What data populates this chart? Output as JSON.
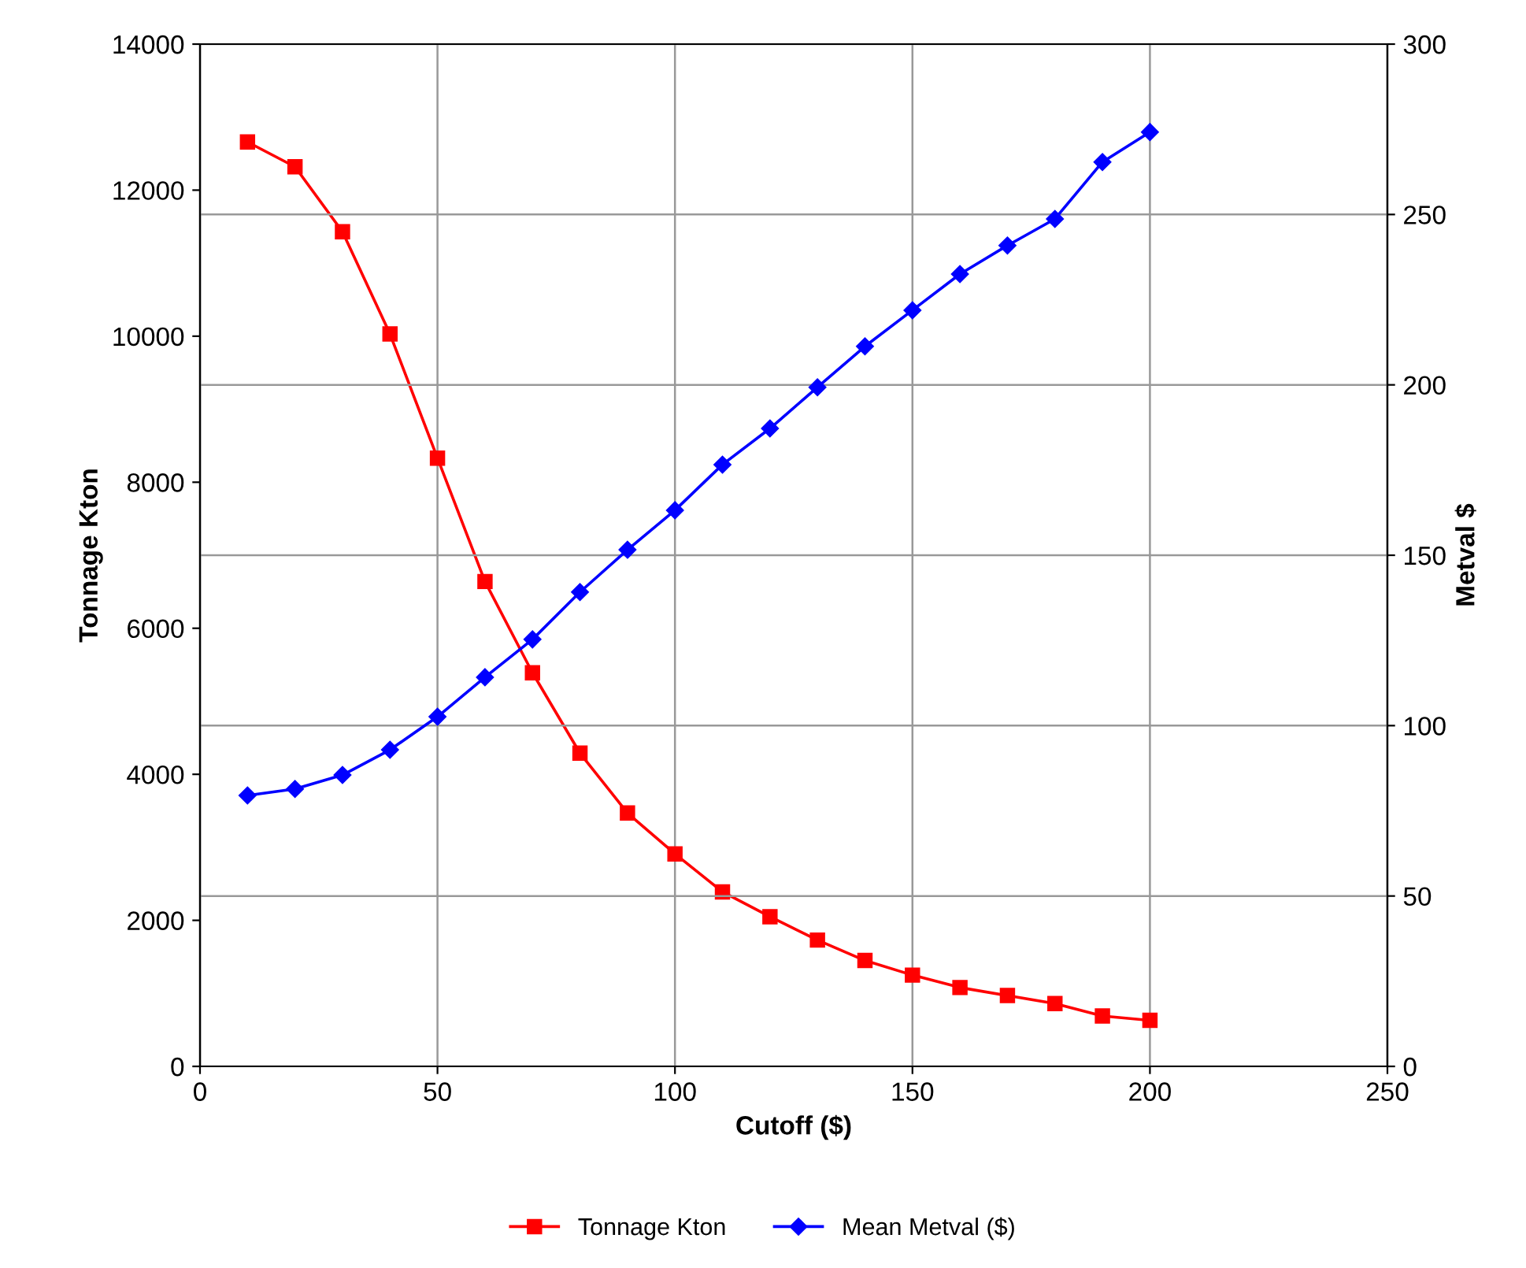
{
  "chart_data": {
    "type": "line",
    "xlabel": "Cutoff ($)",
    "ylabel": "Tonnage Kton",
    "y2label": "Metval $",
    "x": [
      10,
      20,
      30,
      40,
      50,
      60,
      70,
      80,
      90,
      100,
      110,
      120,
      130,
      140,
      150,
      160,
      170,
      180,
      190,
      200
    ],
    "series": [
      {
        "name": "Tonnage Kton",
        "color": "#ff0000",
        "marker": "square",
        "values": [
          12660,
          12320,
          11430,
          10030,
          8330,
          6640,
          5390,
          4290,
          3470,
          2910,
          2390,
          2050,
          1730,
          1450,
          1250,
          1080,
          970,
          860,
          690,
          630
        ]
      },
      {
        "name": "Mean Metval ($)",
        "color": "#0000ff",
        "marker": "diamond",
        "axis": "y2",
        "values": [
          79.5,
          81.4,
          85.5,
          92.9,
          102.6,
          114.2,
          125.3,
          139.2,
          151.6,
          163.2,
          176.6,
          187.2,
          199.3,
          211.3,
          221.9,
          232.5,
          240.9,
          248.7,
          265.4,
          274.2
        ]
      }
    ],
    "xlim": [
      0,
      250
    ],
    "xticks": [
      0,
      50,
      100,
      150,
      200,
      250
    ],
    "ylim": [
      0,
      14000
    ],
    "yticks": [
      0,
      2000,
      4000,
      6000,
      8000,
      10000,
      12000,
      14000
    ],
    "y2lim": [
      0,
      300
    ],
    "y2ticks": [
      0,
      50,
      100,
      150,
      200,
      250,
      300
    ],
    "grid": true,
    "legend": "bottom",
    "line_style": "solid"
  }
}
